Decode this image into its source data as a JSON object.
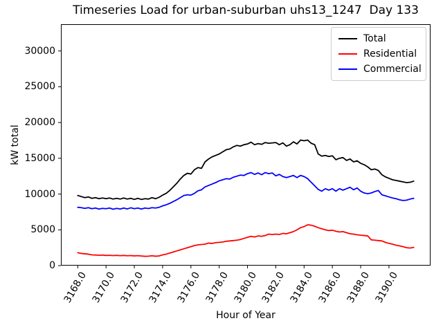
{
  "chart_data": {
    "type": "line",
    "title": "Timeseries Load for urban-suburban uhs13_1247  Day 133",
    "xlabel": "Hour of Year",
    "ylabel": "kW total",
    "xlim": [
      3166.81,
      3192.94
    ],
    "ylim": [
      0,
      33740
    ],
    "grid": false,
    "legend_position": "upper right",
    "x_ticks": {
      "values": [
        3168,
        3170,
        3172,
        3174,
        3176,
        3178,
        3180,
        3182,
        3184,
        3186,
        3188,
        3190
      ],
      "labels": [
        "3168.0",
        "3170.0",
        "3172.0",
        "3174.0",
        "3176.0",
        "3178.0",
        "3180.0",
        "3182.0",
        "3184.0",
        "3186.0",
        "3188.0",
        "3190.0"
      ]
    },
    "y_ticks": {
      "values": [
        0,
        5000,
        10000,
        15000,
        20000,
        25000,
        30000
      ],
      "labels": [
        "0",
        "5000",
        "10000",
        "15000",
        "20000",
        "25000",
        "30000"
      ]
    },
    "x": [
      3168.0,
      3168.25,
      3168.5,
      3168.75,
      3169.0,
      3169.25,
      3169.5,
      3169.75,
      3170.0,
      3170.25,
      3170.5,
      3170.75,
      3171.0,
      3171.25,
      3171.5,
      3171.75,
      3172.0,
      3172.25,
      3172.5,
      3172.75,
      3173.0,
      3173.25,
      3173.5,
      3173.75,
      3174.0,
      3174.25,
      3174.5,
      3174.75,
      3175.0,
      3175.25,
      3175.5,
      3175.75,
      3176.0,
      3176.25,
      3176.5,
      3176.75,
      3177.0,
      3177.25,
      3177.5,
      3177.75,
      3178.0,
      3178.25,
      3178.5,
      3178.75,
      3179.0,
      3179.25,
      3179.5,
      3179.75,
      3180.0,
      3180.25,
      3180.5,
      3180.75,
      3181.0,
      3181.25,
      3181.5,
      3181.75,
      3182.0,
      3182.25,
      3182.5,
      3182.75,
      3183.0,
      3183.25,
      3183.5,
      3183.75,
      3184.0,
      3184.25,
      3184.5,
      3184.75,
      3185.0,
      3185.25,
      3185.5,
      3185.75,
      3186.0,
      3186.25,
      3186.5,
      3186.75,
      3187.0,
      3187.25,
      3187.5,
      3187.75,
      3188.0,
      3188.25,
      3188.5,
      3188.75,
      3189.0,
      3189.25,
      3189.5,
      3189.75,
      3190.0,
      3190.25,
      3190.5,
      3190.75,
      3191.0,
      3191.25,
      3191.5,
      3191.75
    ],
    "series": [
      {
        "name": "Total",
        "color": "#000000",
        "values": [
          9800,
          9650,
          9500,
          9600,
          9400,
          9500,
          9350,
          9450,
          9350,
          9450,
          9300,
          9400,
          9300,
          9450,
          9300,
          9400,
          9250,
          9400,
          9250,
          9350,
          9300,
          9500,
          9350,
          9550,
          9850,
          10100,
          10500,
          11000,
          11500,
          12100,
          12600,
          12900,
          12800,
          13400,
          13700,
          13600,
          14500,
          14900,
          15200,
          15400,
          15600,
          15900,
          16200,
          16300,
          16600,
          16800,
          16700,
          16900,
          17000,
          17250,
          16900,
          17050,
          16950,
          17200,
          17100,
          17150,
          17200,
          16900,
          17150,
          16700,
          16900,
          17300,
          17000,
          17550,
          17450,
          17550,
          17100,
          16900,
          15600,
          15300,
          15400,
          15250,
          15350,
          14800,
          15000,
          15100,
          14700,
          14900,
          14500,
          14650,
          14300,
          14100,
          13800,
          13400,
          13500,
          13300,
          12700,
          12400,
          12200,
          12000,
          11900,
          11800,
          11700,
          11600,
          11650,
          11800
        ]
      },
      {
        "name": "Residential",
        "color": "#ff0000",
        "values": [
          1800,
          1700,
          1650,
          1600,
          1500,
          1480,
          1450,
          1470,
          1420,
          1440,
          1400,
          1430,
          1390,
          1420,
          1380,
          1400,
          1360,
          1390,
          1340,
          1300,
          1320,
          1380,
          1310,
          1350,
          1500,
          1600,
          1750,
          1900,
          2050,
          2200,
          2350,
          2500,
          2650,
          2800,
          2900,
          2950,
          3000,
          3150,
          3100,
          3200,
          3250,
          3300,
          3400,
          3450,
          3500,
          3550,
          3650,
          3800,
          3950,
          4100,
          4000,
          4150,
          4100,
          4200,
          4400,
          4350,
          4400,
          4350,
          4500,
          4450,
          4600,
          4750,
          5000,
          5300,
          5450,
          5700,
          5650,
          5500,
          5300,
          5150,
          5000,
          4900,
          4950,
          4800,
          4700,
          4750,
          4600,
          4450,
          4400,
          4300,
          4250,
          4200,
          4150,
          3600,
          3550,
          3500,
          3450,
          3250,
          3100,
          3000,
          2850,
          2750,
          2650,
          2500,
          2450,
          2550
        ]
      },
      {
        "name": "Commercial",
        "color": "#0000ff",
        "values": [
          8150,
          8100,
          8000,
          8100,
          7950,
          8050,
          7900,
          8000,
          7950,
          8050,
          7880,
          8000,
          7900,
          8050,
          7920,
          8080,
          7950,
          8050,
          7900,
          8050,
          7980,
          8100,
          8050,
          8150,
          8350,
          8500,
          8700,
          8950,
          9200,
          9500,
          9800,
          9900,
          9850,
          10100,
          10450,
          10600,
          11000,
          11200,
          11400,
          11600,
          11850,
          12000,
          12150,
          12100,
          12350,
          12500,
          12650,
          12600,
          12850,
          13000,
          12750,
          12950,
          12700,
          13000,
          12850,
          12950,
          12550,
          12750,
          12450,
          12300,
          12450,
          12600,
          12300,
          12600,
          12450,
          12150,
          11650,
          11150,
          10650,
          10400,
          10750,
          10550,
          10750,
          10400,
          10750,
          10550,
          10750,
          10950,
          10600,
          10850,
          10400,
          10150,
          10050,
          10150,
          10350,
          10500,
          9900,
          9750,
          9600,
          9450,
          9350,
          9200,
          9100,
          9150,
          9300,
          9400
        ]
      }
    ]
  }
}
